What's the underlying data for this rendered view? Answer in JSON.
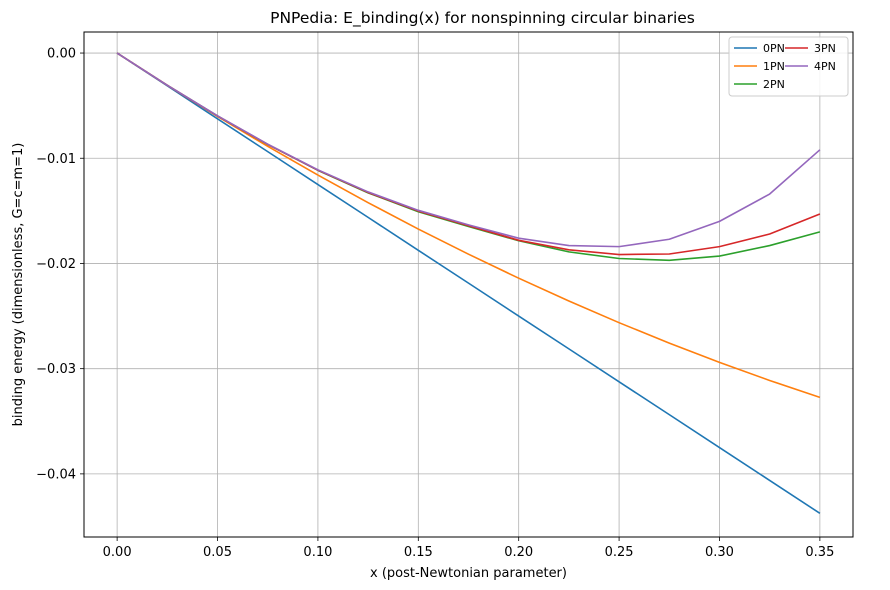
{
  "chart_data": {
    "type": "line",
    "title": "PNPedia: E_binding(x) for nonspinning circular binaries",
    "xlabel": "x (post-Newtonian parameter)",
    "ylabel": "binding energy (dimensionless, G=c=m=1)",
    "xlim": [
      -0.0165,
      0.3665
    ],
    "ylim": [
      -0.046,
      0.002
    ],
    "xticks": [
      0.0,
      0.05,
      0.1,
      0.15,
      0.2,
      0.25,
      0.3,
      0.35
    ],
    "xtick_labels": [
      "0.00",
      "0.05",
      "0.10",
      "0.15",
      "0.20",
      "0.25",
      "0.30",
      "0.35"
    ],
    "yticks": [
      0.0,
      -0.01,
      -0.02,
      -0.03,
      -0.04
    ],
    "ytick_labels": [
      "0.00",
      "−0.01",
      "−0.02",
      "−0.03",
      "−0.04"
    ],
    "grid": true,
    "legend_position": "top-right",
    "legend_columns": 2,
    "x": [
      0.0,
      0.025,
      0.05,
      0.075,
      0.1,
      0.125,
      0.15,
      0.175,
      0.2,
      0.225,
      0.25,
      0.275,
      0.3,
      0.325,
      0.35
    ],
    "series": [
      {
        "name": "0PN",
        "color": "#1f77b4",
        "values": [
          0.0,
          -0.00312,
          -0.00625,
          -0.00937,
          -0.0125,
          -0.01562,
          -0.01875,
          -0.02187,
          -0.025,
          -0.02812,
          -0.03125,
          -0.03437,
          -0.0375,
          -0.04062,
          -0.04375
        ]
      },
      {
        "name": "1PN",
        "color": "#ff7f0e",
        "values": [
          0.0,
          -0.00307,
          -0.00603,
          -0.00887,
          -0.0116,
          -0.01422,
          -0.01673,
          -0.01912,
          -0.0214,
          -0.02357,
          -0.02563,
          -0.02757,
          -0.0294,
          -0.03112,
          -0.03273
        ]
      },
      {
        "name": "2PN",
        "color": "#2ca02c",
        "values": [
          0.0,
          -0.00307,
          -0.00598,
          -0.00869,
          -0.01115,
          -0.01329,
          -0.01508,
          -0.01649,
          -0.01784,
          -0.0189,
          -0.01953,
          -0.0197,
          -0.0193,
          -0.0183,
          -0.017
        ]
      },
      {
        "name": "3PN",
        "color": "#d62728",
        "values": [
          0.0,
          -0.00307,
          -0.00598,
          -0.00868,
          -0.01113,
          -0.01325,
          -0.01502,
          -0.01641,
          -0.0178,
          -0.0187,
          -0.01915,
          -0.0191,
          -0.0184,
          -0.0172,
          -0.0153
        ]
      },
      {
        "name": "4PN",
        "color": "#9467bd",
        "values": [
          0.0,
          -0.00307,
          -0.00597,
          -0.00866,
          -0.0111,
          -0.0132,
          -0.01495,
          -0.01633,
          -0.0176,
          -0.0183,
          -0.0184,
          -0.0177,
          -0.016,
          -0.0134,
          -0.0092
        ]
      }
    ]
  }
}
